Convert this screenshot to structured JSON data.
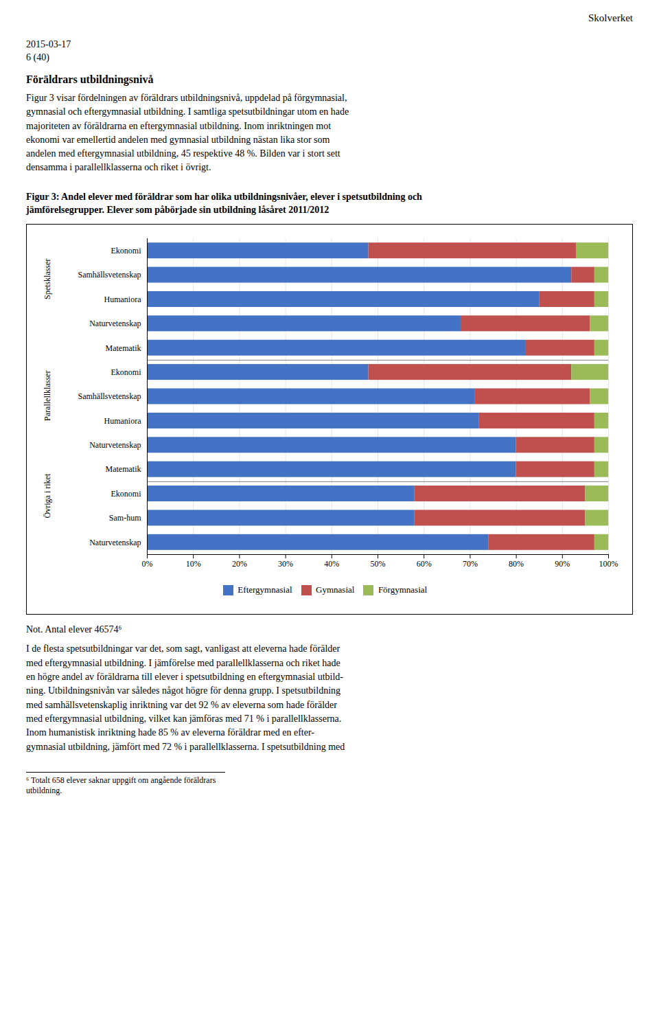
{
  "chart_data": {
    "type": "bar",
    "orientation": "horizontal",
    "stacked": true,
    "title": "Figur 3: Andel elever med föräldrar som har olika utbildningsnivåer, elever i spetsutbildning och\njämförelsegrupper. Elever som påbörjade sin utbildning låsåret 2011/2012",
    "categories": [
      "Ekonomi",
      "Samhällsvetenskap",
      "Humaniora",
      "Naturvetenskap",
      "Matematik",
      "Ekonomi",
      "Samhällsvetenskap",
      "Humaniora",
      "Naturvetenskap",
      "Matematik",
      "Ekonomi",
      "Sam-hum",
      "Naturvetenskap"
    ],
    "groups": [
      {
        "name": "Spetsklasser",
        "count": 5
      },
      {
        "name": "Parallellklasser",
        "count": 5
      },
      {
        "name": "Övriga i riket",
        "count": 3
      }
    ],
    "series": [
      {
        "name": "Eftergymnasial",
        "color": "#4472C4",
        "values": [
          48,
          92,
          85,
          68,
          82,
          48,
          71,
          72,
          80,
          80,
          58,
          58,
          74
        ]
      },
      {
        "name": "Gymnasial",
        "color": "#C0504D",
        "values": [
          45,
          5,
          12,
          28,
          15,
          44,
          25,
          25,
          17,
          17,
          37,
          37,
          23
        ]
      },
      {
        "name": "Förgymnasial",
        "color": "#9BBB59",
        "values": [
          7,
          3,
          3,
          4,
          3,
          8,
          4,
          3,
          3,
          3,
          5,
          5,
          3
        ]
      }
    ],
    "xlim": [
      0,
      100
    ],
    "xticks": [
      {
        "value": 0,
        "label": "0%"
      },
      {
        "value": 10,
        "label": "10%"
      },
      {
        "value": 20,
        "label": "20%"
      },
      {
        "value": 30,
        "label": "30%"
      },
      {
        "value": 40,
        "label": "40%"
      },
      {
        "value": 50,
        "label": "50%"
      },
      {
        "value": 60,
        "label": "60%"
      },
      {
        "value": 70,
        "label": "70%"
      },
      {
        "value": 80,
        "label": "80%"
      },
      {
        "value": 90,
        "label": "90%"
      },
      {
        "value": 100,
        "label": "100%"
      }
    ],
    "grid": true,
    "annotations": {
      "header": "Skolverket",
      "date": "2015-03-17",
      "page": "6 (40)",
      "heading": "Föräldrars utbildningsnivå",
      "body": "Figur 3 visar fördelningen av föräldrars utbildningsnivå, uppdelad på förgymnasial,\ngymnasial och eftergymnasial utbildning. I samtliga spetsutbildningar utom en hade\nmajoriteten av föräldrarna en eftergymnasial utbildning. Inom inriktningen mot\nekonomi var emellertid andelen med gymnasial utbildning nästan lika stor som\nandelen med eftergymnasial utbildning, 45 respektive 48 %. Bilden var i stort sett\ndensamma i parallellklasserna och riket i övrigt.",
      "note": "Not. Antal elever 46574⁶",
      "bottom_text": "I de flesta spetsutbildningar var det, som sagt, vanligast att eleverna hade förälder\nmed eftergymnasial utbildning. I jämförelse med parallellklasserna och riket hade\nen högre andel av föräldrarna till elever i spetsutbildning en eftergymnasial utbild-\nning. Utbildningsnivån var således något högre för denna grupp. I spetsutbildning\nmed samhällsvetenskaplig inriktning var det 92 % av eleverna som hade förälder\nmed eftergymnasial utbildning, vilket kan jämföras med 71 % i parallellklasserna.\nInom humanistisk inriktning hade 85 % av eleverna föräldrar med en efter-\ngymnasial utbildning, jämfört med 72 % i parallellklasserna. I spetsutbildning med",
      "footnote": "⁶ Totalt 658 elever saknar uppgift om angående föräldrars utbildning."
    }
  }
}
